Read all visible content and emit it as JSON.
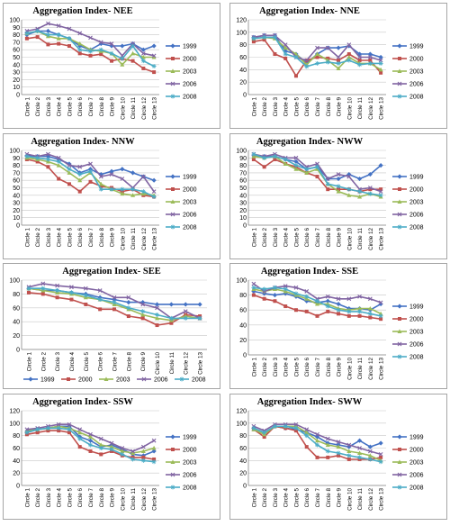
{
  "colors": {
    "1999": "#4472c4",
    "2000": "#c0504d",
    "2003": "#9bbb59",
    "2006": "#8064a2",
    "2008": "#4bacc6"
  },
  "chart_data": [
    {
      "type": "line",
      "title": "Aggregation Index- NEE",
      "categories": [
        "Circle 1",
        "Circle 2",
        "Circle 3",
        "Circle 4",
        "Circle 5",
        "Circle 6",
        "Circle 7",
        "Circle 8",
        "Circle 9",
        "Circle 10",
        "Circle 11",
        "Circle 12",
        "Circle 13"
      ],
      "ylim": [
        0,
        100
      ],
      "yticks": [
        0,
        10,
        20,
        30,
        40,
        50,
        60,
        70,
        80,
        90,
        100
      ],
      "legend_position": "right",
      "series": [
        {
          "name": "1999",
          "values": [
            80,
            85,
            85,
            80,
            75,
            65,
            60,
            68,
            65,
            65,
            68,
            60,
            65
          ]
        },
        {
          "name": "2000",
          "values": [
            75,
            77,
            67,
            68,
            65,
            55,
            52,
            54,
            45,
            48,
            45,
            35,
            30
          ]
        },
        {
          "name": "2003",
          "values": [
            82,
            85,
            78,
            75,
            75,
            68,
            60,
            58,
            55,
            40,
            55,
            50,
            50
          ]
        },
        {
          "name": "2006",
          "values": [
            85,
            88,
            95,
            92,
            88,
            82,
            76,
            70,
            68,
            52,
            68,
            55,
            52
          ]
        },
        {
          "name": "2008",
          "values": [
            82,
            85,
            80,
            80,
            75,
            60,
            58,
            60,
            55,
            48,
            65,
            45,
            38
          ]
        }
      ]
    },
    {
      "type": "line",
      "title": "Aggregation Index- NNE",
      "categories": [
        "Circle 1",
        "Circle 2",
        "Circle 3",
        "Circle 4",
        "Circle 5",
        "Circle 6",
        "Circle 7",
        "Circle 8",
        "Circle 9",
        "Circle 10",
        "Circle 11",
        "Circle 12",
        "Circle 13"
      ],
      "ylim": [
        0,
        120
      ],
      "yticks": [
        0,
        20,
        40,
        60,
        80,
        100,
        120
      ],
      "legend_position": "right",
      "series": [
        {
          "name": "1999",
          "values": [
            92,
            95,
            95,
            70,
            65,
            50,
            65,
            75,
            75,
            78,
            65,
            65,
            60
          ]
        },
        {
          "name": "2000",
          "values": [
            85,
            88,
            65,
            58,
            30,
            55,
            60,
            58,
            55,
            65,
            55,
            55,
            35
          ]
        },
        {
          "name": "2003",
          "values": [
            90,
            92,
            90,
            75,
            65,
            48,
            65,
            55,
            42,
            60,
            50,
            50,
            40
          ]
        },
        {
          "name": "2006",
          "values": [
            92,
            95,
            95,
            80,
            60,
            55,
            75,
            75,
            60,
            80,
            60,
            60,
            55
          ]
        },
        {
          "name": "2008",
          "values": [
            90,
            92,
            92,
            65,
            60,
            45,
            50,
            52,
            50,
            55,
            48,
            50,
            50
          ]
        }
      ]
    },
    {
      "type": "line",
      "title": "Aggregation Index- NNW",
      "categories": [
        "Circle 1",
        "Circle 2",
        "Circle 3",
        "Circle 4",
        "Circle 5",
        "Circle 6",
        "Circle 7",
        "Circle 8",
        "Circle 9",
        "Circle 10",
        "Circle 11",
        "Circle 12",
        "Circle 13"
      ],
      "ylim": [
        0,
        100
      ],
      "yticks": [
        0,
        10,
        20,
        30,
        40,
        50,
        60,
        70,
        80,
        90,
        100
      ],
      "legend_position": "right",
      "series": [
        {
          "name": "1999",
          "values": [
            93,
            92,
            92,
            88,
            82,
            70,
            75,
            68,
            72,
            75,
            70,
            65,
            60
          ]
        },
        {
          "name": "2000",
          "values": [
            88,
            85,
            78,
            62,
            55,
            45,
            58,
            52,
            50,
            45,
            48,
            40,
            38
          ]
        },
        {
          "name": "2003",
          "values": [
            90,
            88,
            85,
            80,
            70,
            60,
            70,
            55,
            48,
            42,
            40,
            42,
            40
          ]
        },
        {
          "name": "2006",
          "values": [
            95,
            92,
            95,
            90,
            80,
            78,
            82,
            65,
            68,
            62,
            50,
            65,
            45
          ]
        },
        {
          "name": "2008",
          "values": [
            92,
            90,
            88,
            85,
            75,
            68,
            72,
            48,
            48,
            48,
            48,
            45,
            38
          ]
        }
      ]
    },
    {
      "type": "line",
      "title": "Aggregation Index- NWW",
      "categories": [
        "Circle 1",
        "Circle 2",
        "Circle 3",
        "Circle 4",
        "Circle 5",
        "Circle 6",
        "Circle 7",
        "Circle 8",
        "Circle 9",
        "Circle 10",
        "Circle 11",
        "Circle 12",
        "Circle 13"
      ],
      "ylim": [
        0,
        100
      ],
      "yticks": [
        0,
        10,
        20,
        30,
        40,
        50,
        60,
        70,
        80,
        90,
        100
      ],
      "legend_position": "right",
      "series": [
        {
          "name": "1999",
          "values": [
            93,
            92,
            92,
            88,
            85,
            75,
            78,
            62,
            62,
            68,
            62,
            68,
            80
          ]
        },
        {
          "name": "2000",
          "values": [
            88,
            78,
            88,
            82,
            78,
            70,
            65,
            48,
            48,
            48,
            45,
            48,
            48
          ]
        },
        {
          "name": "2003",
          "values": [
            92,
            90,
            92,
            82,
            75,
            70,
            75,
            55,
            45,
            40,
            38,
            42,
            38
          ]
        },
        {
          "name": "2006",
          "values": [
            95,
            92,
            95,
            90,
            90,
            78,
            82,
            62,
            68,
            65,
            48,
            50,
            45
          ]
        },
        {
          "name": "2008",
          "values": [
            95,
            90,
            92,
            88,
            80,
            75,
            78,
            55,
            52,
            48,
            45,
            42,
            40
          ]
        }
      ]
    },
    {
      "type": "line",
      "title": "Aggregation Index- SEE",
      "categories": [
        "Circle 1",
        "Circle 2",
        "Circle 3",
        "Circle 4",
        "Circle 5",
        "Circle 6",
        "Circle 7",
        "Circle 8",
        "Circle 9",
        "Circle 10",
        "Circle 11",
        "Circle 12",
        "Circle 13"
      ],
      "ylim": [
        0,
        100
      ],
      "yticks": [
        0,
        20,
        40,
        60,
        80,
        100
      ],
      "legend_position": "bottom",
      "series": [
        {
          "name": "1999",
          "values": [
            88,
            85,
            85,
            82,
            80,
            75,
            72,
            68,
            68,
            65,
            65,
            65,
            65
          ]
        },
        {
          "name": "2000",
          "values": [
            82,
            80,
            75,
            72,
            65,
            58,
            58,
            48,
            45,
            35,
            38,
            50,
            48
          ]
        },
        {
          "name": "2003",
          "values": [
            88,
            85,
            82,
            80,
            75,
            72,
            65,
            58,
            50,
            45,
            42,
            48,
            45
          ]
        },
        {
          "name": "2006",
          "values": [
            90,
            95,
            92,
            90,
            88,
            85,
            75,
            75,
            65,
            60,
            45,
            55,
            45
          ]
        },
        {
          "name": "2008",
          "values": [
            88,
            88,
            85,
            82,
            78,
            72,
            68,
            60,
            55,
            50,
            45,
            45,
            45
          ]
        }
      ]
    },
    {
      "type": "line",
      "title": "Aggregation Index- SSE",
      "categories": [
        "Circle 1",
        "Circle 2",
        "Circle 3",
        "Circle 4",
        "Circle 5",
        "Circle 6",
        "Circle 7",
        "Circle 8",
        "Circle 9",
        "Circle 10",
        "Circle 11",
        "Circle 12",
        "Circle 13"
      ],
      "ylim": [
        0,
        100
      ],
      "yticks": [
        0,
        20,
        40,
        60,
        80,
        100
      ],
      "legend_position": "right",
      "series": [
        {
          "name": "1999",
          "values": [
            85,
            82,
            80,
            82,
            78,
            72,
            70,
            72,
            68,
            62,
            62,
            60,
            68
          ]
        },
        {
          "name": "2000",
          "values": [
            80,
            75,
            72,
            65,
            60,
            58,
            52,
            58,
            55,
            52,
            52,
            50,
            48
          ]
        },
        {
          "name": "2003",
          "values": [
            88,
            85,
            88,
            85,
            80,
            75,
            68,
            68,
            62,
            60,
            62,
            62,
            55
          ]
        },
        {
          "name": "2006",
          "values": [
            95,
            85,
            90,
            92,
            90,
            85,
            75,
            78,
            75,
            75,
            78,
            75,
            70
          ]
        },
        {
          "name": "2008",
          "values": [
            90,
            88,
            90,
            88,
            82,
            78,
            72,
            65,
            60,
            58,
            58,
            55,
            52
          ]
        }
      ]
    },
    {
      "type": "line",
      "title": "Aggregation Index- SSW",
      "categories": [
        "Circle 1",
        "Circle 2",
        "Circle 3",
        "Circle 4",
        "Circle 5",
        "Circle 6",
        "Circle 7",
        "Circle 8",
        "Circle 9",
        "Circle 10",
        "Circle 11",
        "Circle 12",
        "Circle 13"
      ],
      "ylim": [
        0,
        120
      ],
      "yticks": [
        0,
        20,
        40,
        60,
        80,
        100,
        120
      ],
      "legend_position": "right",
      "series": [
        {
          "name": "1999",
          "values": [
            85,
            90,
            92,
            95,
            95,
            78,
            72,
            62,
            65,
            58,
            50,
            48,
            55
          ]
        },
        {
          "name": "2000",
          "values": [
            82,
            85,
            88,
            88,
            85,
            62,
            55,
            50,
            55,
            48,
            45,
            45,
            42
          ]
        },
        {
          "name": "2003",
          "values": [
            88,
            90,
            92,
            95,
            92,
            85,
            78,
            65,
            62,
            55,
            52,
            55,
            60
          ]
        },
        {
          "name": "2006",
          "values": [
            90,
            92,
            95,
            98,
            98,
            90,
            82,
            75,
            68,
            60,
            55,
            62,
            72
          ]
        },
        {
          "name": "2008",
          "values": [
            85,
            90,
            92,
            92,
            90,
            75,
            65,
            60,
            58,
            50,
            42,
            40,
            38
          ]
        }
      ]
    },
    {
      "type": "line",
      "title": "Aggregation Index- SWW",
      "categories": [
        "Circle 1",
        "Circle 2",
        "Circle 3",
        "Circle 4",
        "Circle 5",
        "Circle 6",
        "Circle 7",
        "Circle 8",
        "Circle 9",
        "Circle 10",
        "Circle 11",
        "Circle 12",
        "Circle 13"
      ],
      "ylim": [
        0,
        120
      ],
      "yticks": [
        0,
        20,
        40,
        60,
        80,
        100,
        120
      ],
      "legend_position": "right",
      "series": [
        {
          "name": "1999",
          "values": [
            92,
            85,
            95,
            92,
            90,
            85,
            78,
            68,
            65,
            62,
            72,
            62,
            68
          ]
        },
        {
          "name": "2000",
          "values": [
            90,
            78,
            95,
            92,
            88,
            62,
            45,
            45,
            48,
            42,
            42,
            42,
            45
          ]
        },
        {
          "name": "2003",
          "values": [
            90,
            82,
            95,
            95,
            95,
            85,
            72,
            65,
            62,
            55,
            52,
            48,
            40
          ]
        },
        {
          "name": "2006",
          "values": [
            95,
            88,
            98,
            98,
            98,
            90,
            82,
            75,
            70,
            65,
            60,
            55,
            50
          ]
        },
        {
          "name": "2008",
          "values": [
            92,
            85,
            95,
            95,
            92,
            80,
            65,
            55,
            52,
            48,
            45,
            42,
            38
          ]
        }
      ]
    }
  ]
}
